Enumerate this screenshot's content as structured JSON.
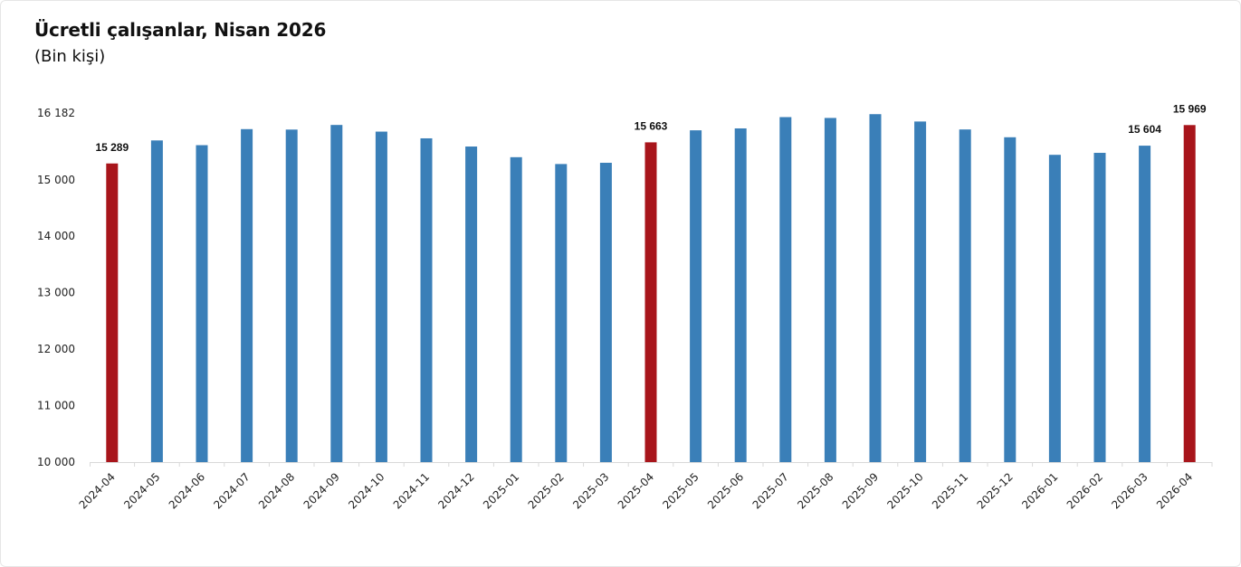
{
  "chart_data": {
    "type": "bar",
    "title": "Ücretli çalışanlar, Nisan 2026",
    "subtitle": "(Bin kişi)",
    "categories": [
      "2024-04",
      "2024-05",
      "2024-06",
      "2024-07",
      "2024-08",
      "2024-09",
      "2024-10",
      "2024-11",
      "2024-12",
      "2025-01",
      "2025-02",
      "2025-03",
      "2025-04",
      "2025-05",
      "2025-06",
      "2025-07",
      "2025-08",
      "2025-09",
      "2025-10",
      "2025-11",
      "2025-12",
      "2026-01",
      "2026-02",
      "2026-03",
      "2026-04"
    ],
    "values": [
      15289,
      15697,
      15613,
      15897,
      15889,
      15971,
      15853,
      15734,
      15589,
      15400,
      15279,
      15301,
      15663,
      15876,
      15910,
      16110,
      16095,
      16162,
      16032,
      15891,
      15753,
      15442,
      15477,
      15604,
      15969
    ],
    "highlighted": [
      "2024-04",
      "2025-04",
      "2026-04"
    ],
    "data_labels": [
      {
        "category": "2024-04",
        "text": "15 289"
      },
      {
        "category": "2025-04",
        "text": "15 663"
      },
      {
        "category": "2026-03",
        "text": "15 604"
      },
      {
        "category": "2026-04",
        "text": "15 969"
      }
    ],
    "y_ticks": [
      {
        "value": 10000,
        "label": "10 000"
      },
      {
        "value": 11000,
        "label": "11 000"
      },
      {
        "value": 12000,
        "label": "12 000"
      },
      {
        "value": 13000,
        "label": "13 000"
      },
      {
        "value": 14000,
        "label": "14 000"
      },
      {
        "value": 15000,
        "label": "15 000"
      },
      {
        "value": 16182,
        "label": "16 182"
      }
    ],
    "ylim": [
      10000,
      16182
    ],
    "grid": false,
    "colors": {
      "bar": "#3a7fb8",
      "highlight": "#a8151b"
    }
  }
}
